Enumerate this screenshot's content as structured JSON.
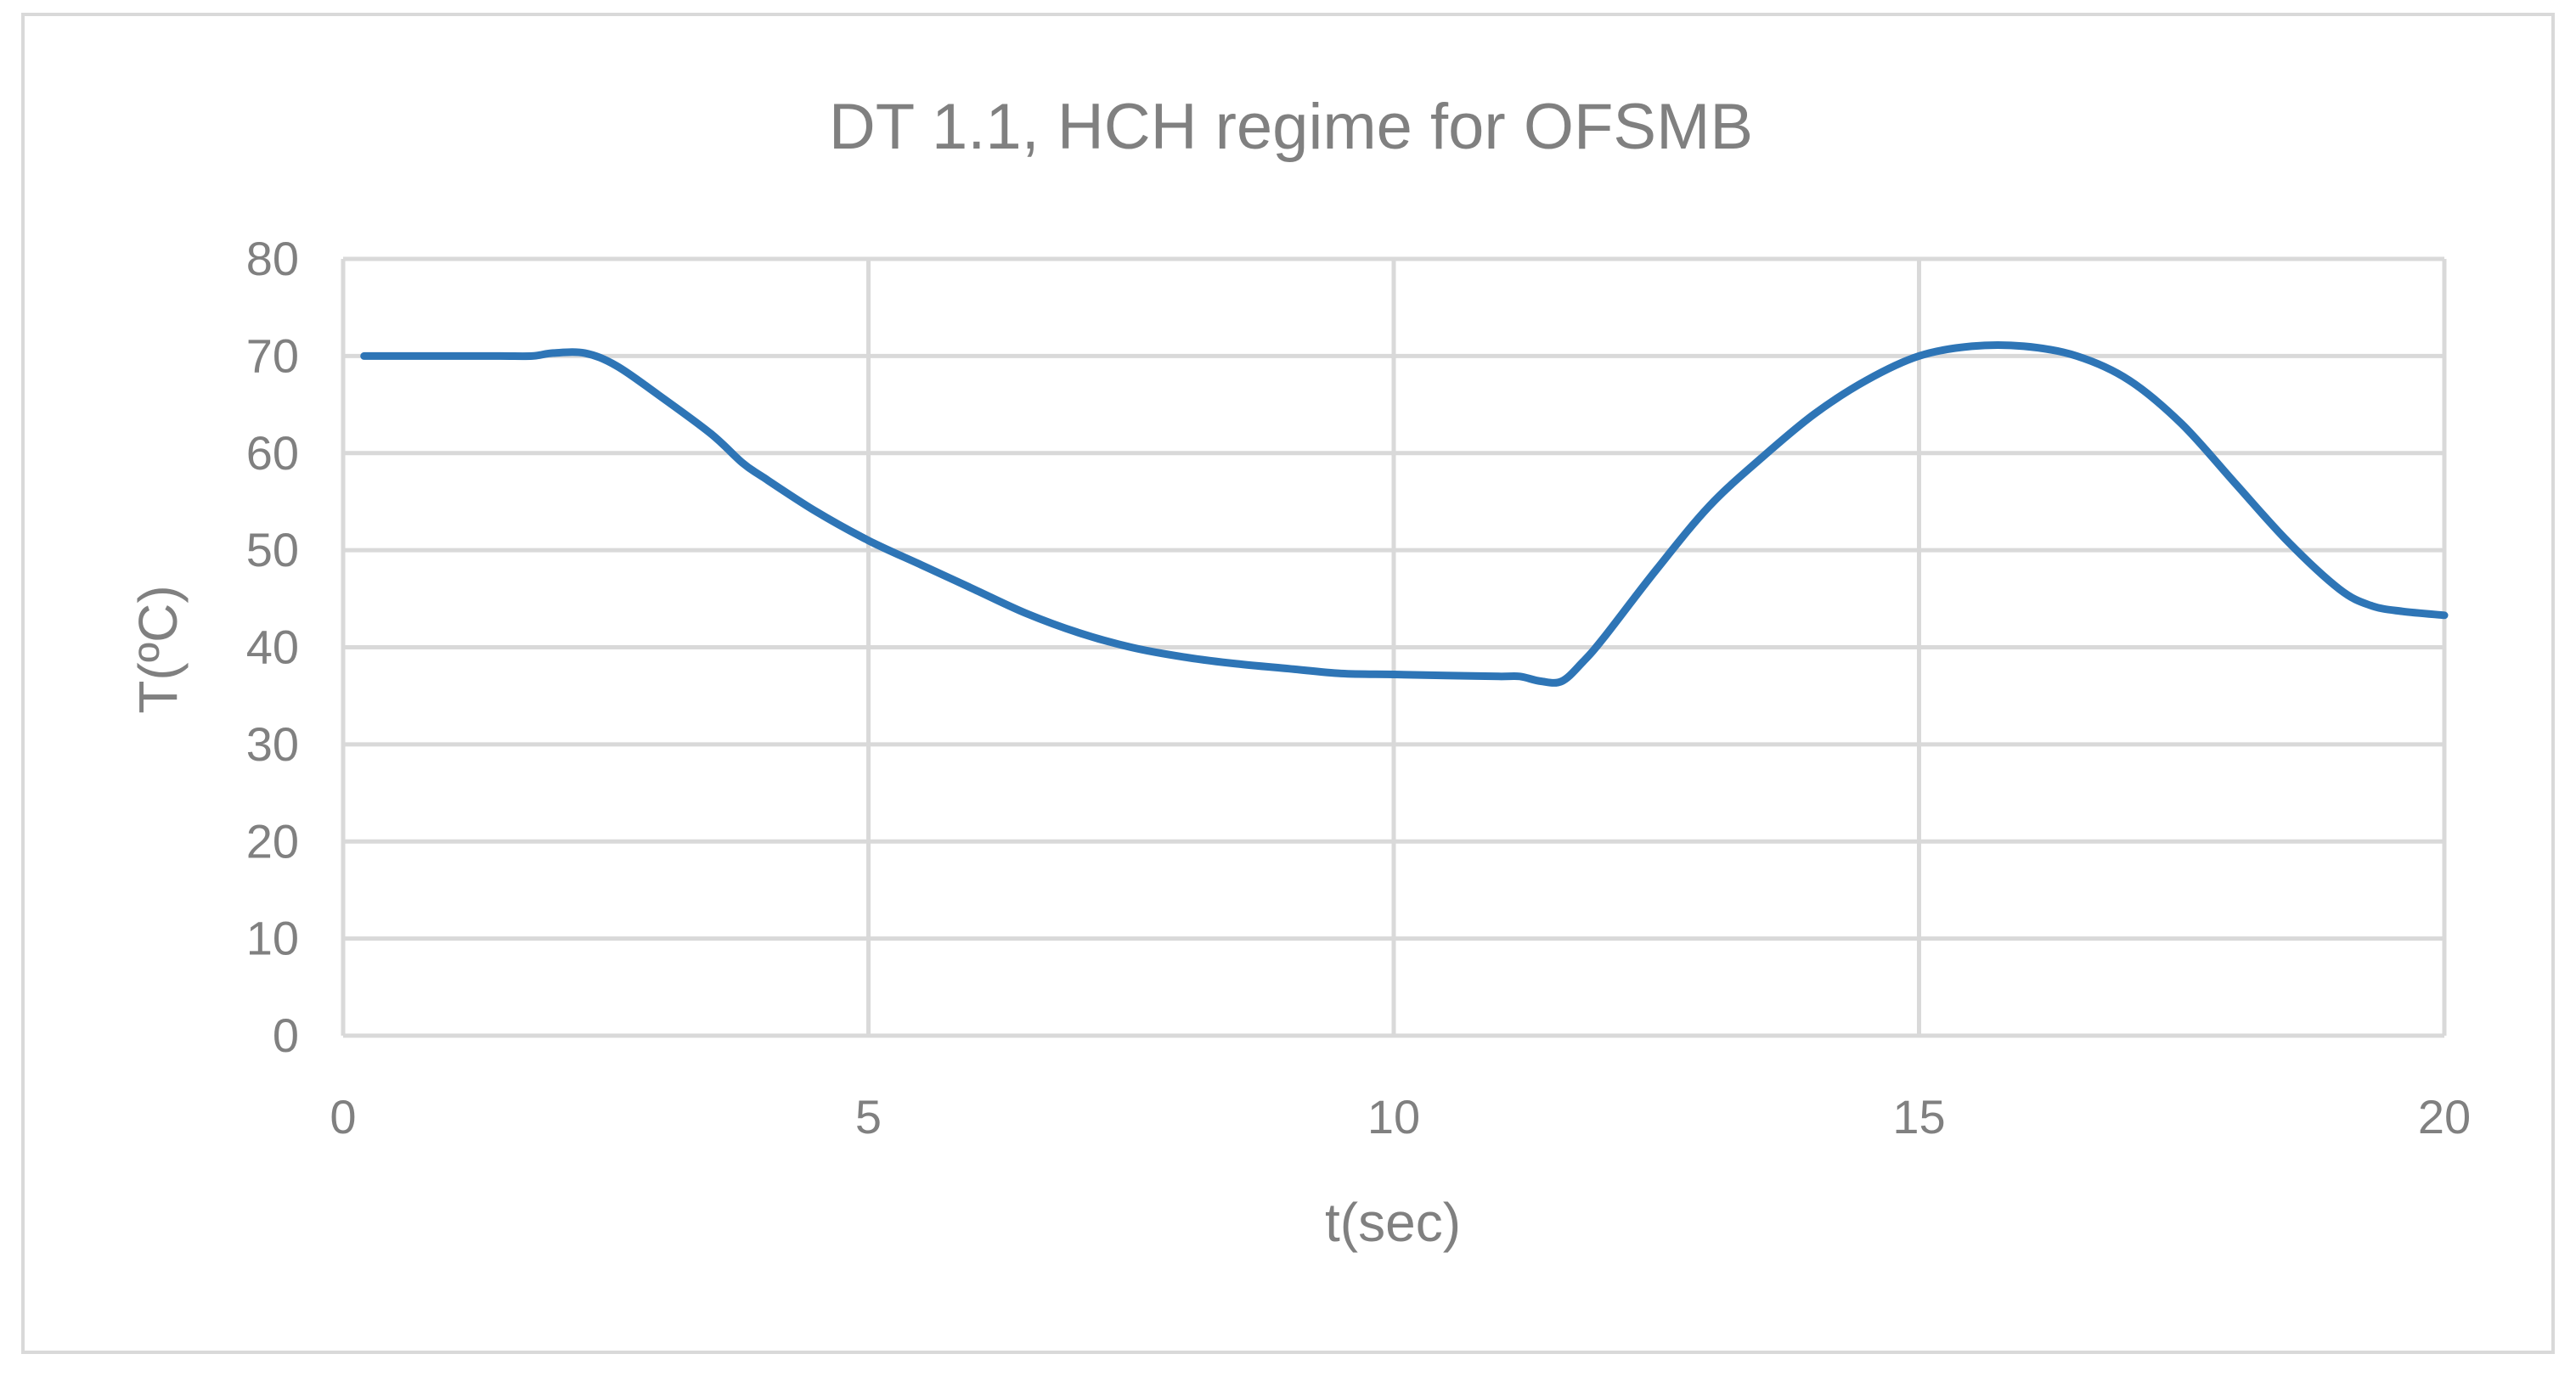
{
  "chart_data": {
    "type": "line",
    "title": "DT 1.1, HCH regime for OFSMB",
    "xlabel": "t(sec)",
    "ylabel": "T(ºC)",
    "xlim": [
      0,
      20
    ],
    "ylim": [
      0,
      80
    ],
    "x_ticks": [
      0,
      5,
      10,
      15,
      20
    ],
    "y_ticks": [
      0,
      10,
      20,
      30,
      40,
      50,
      60,
      70,
      80
    ],
    "grid": true,
    "legend": "none",
    "series": [
      {
        "color": "#2e75b6",
        "x": [
          0.2,
          0.5,
          1.0,
          1.5,
          1.8,
          2.0,
          2.3,
          2.6,
          3.0,
          3.5,
          3.8,
          4.0,
          4.5,
          5.0,
          5.5,
          6.0,
          6.5,
          7.0,
          7.5,
          8.0,
          8.5,
          9.0,
          9.5,
          10.0,
          10.5,
          11.0,
          11.2,
          11.4,
          11.6,
          11.8,
          12.0,
          12.5,
          13.0,
          13.5,
          14.0,
          14.5,
          15.0,
          15.5,
          16.0,
          16.5,
          17.0,
          17.5,
          18.0,
          18.5,
          19.0,
          19.3,
          19.6,
          20.0
        ],
        "y": [
          70,
          70,
          70,
          70,
          70,
          70.3,
          70.3,
          69,
          66,
          62,
          59,
          57.5,
          54,
          51,
          48.5,
          46,
          43.5,
          41.5,
          40,
          39,
          38.3,
          37.8,
          37.3,
          37.2,
          37.1,
          37,
          37,
          36.5,
          36.5,
          38.5,
          41,
          48,
          54.5,
          59.5,
          64,
          67.5,
          70,
          71,
          71,
          70,
          67.5,
          63,
          57,
          51,
          46,
          44.3,
          43.7,
          43.3
        ]
      }
    ]
  }
}
